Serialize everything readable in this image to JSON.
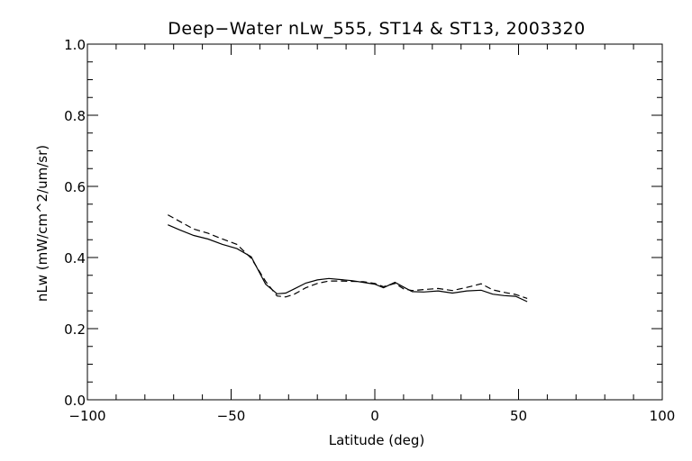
{
  "chart_data": {
    "type": "line",
    "title": "Deep−Water nLw_555, ST14 & ST13, 2003320",
    "xlabel": "Latitude (deg)",
    "ylabel": "nLw (mW/cm^2/um/sr)",
    "xlim": [
      -100,
      100
    ],
    "ylim": [
      0.0,
      1.0
    ],
    "xticks": [
      -100,
      -50,
      0,
      50,
      100
    ],
    "xtick_labels": [
      "−100",
      "−50",
      "0",
      "50",
      "100"
    ],
    "yticks": [
      0.0,
      0.2,
      0.4,
      0.6,
      0.8,
      1.0
    ],
    "ytick_labels": [
      "0.0",
      "0.2",
      "0.4",
      "0.6",
      "0.8",
      "1.0"
    ],
    "grid": false,
    "series": [
      {
        "style": "solid",
        "x": [
          -72,
          -68,
          -63,
          -58,
          -53,
          -48,
          -43,
          -38,
          -34,
          -31,
          -28,
          -24,
          -20,
          -16,
          -12,
          -8,
          -4,
          0,
          3,
          7,
          10,
          13,
          17,
          22,
          27,
          32,
          37,
          41,
          45,
          49,
          53
        ],
        "y": [
          0.492,
          0.478,
          0.462,
          0.452,
          0.437,
          0.425,
          0.402,
          0.325,
          0.298,
          0.3,
          0.312,
          0.328,
          0.337,
          0.341,
          0.338,
          0.335,
          0.33,
          0.325,
          0.315,
          0.33,
          0.317,
          0.304,
          0.303,
          0.306,
          0.3,
          0.306,
          0.308,
          0.297,
          0.293,
          0.291,
          0.276
        ]
      },
      {
        "style": "dashed",
        "x": [
          -72,
          -68,
          -63,
          -58,
          -53,
          -48,
          -43,
          -38,
          -34,
          -31,
          -28,
          -24,
          -20,
          -16,
          -12,
          -8,
          -4,
          0,
          3,
          7,
          10,
          13,
          17,
          22,
          27,
          32,
          37,
          41,
          45,
          49,
          53
        ],
        "y": [
          0.52,
          0.502,
          0.48,
          0.468,
          0.452,
          0.437,
          0.398,
          0.333,
          0.292,
          0.289,
          0.297,
          0.315,
          0.327,
          0.334,
          0.334,
          0.333,
          0.332,
          0.327,
          0.318,
          0.327,
          0.312,
          0.307,
          0.31,
          0.313,
          0.307,
          0.316,
          0.326,
          0.309,
          0.302,
          0.296,
          0.285
        ]
      }
    ]
  }
}
